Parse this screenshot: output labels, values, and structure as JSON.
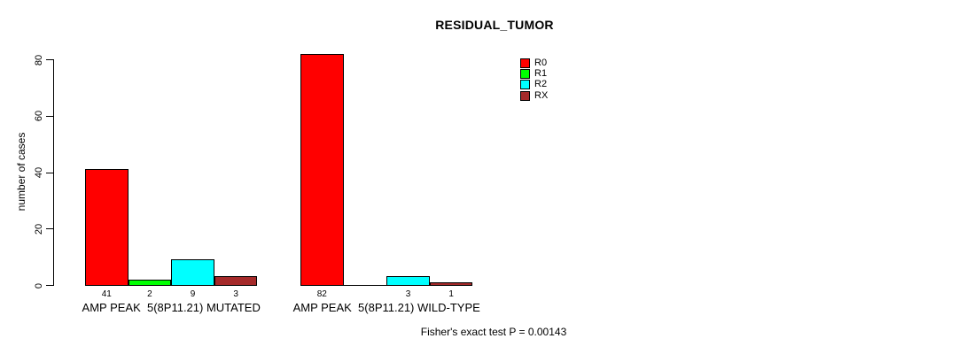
{
  "chart_data": {
    "type": "bar",
    "title": "RESIDUAL_TUMOR",
    "xlabel": "",
    "ylabel": "number of cases",
    "ylim": [
      0,
      80
    ],
    "yticks": [
      "0",
      "20",
      "40",
      "60",
      "80"
    ],
    "grid": false,
    "legend_position": "top-right",
    "categories": [
      "AMP PEAK  5(8P11.21) MUTATED",
      "AMP PEAK  5(8P11.21) WILD-TYPE"
    ],
    "series": [
      {
        "name": "R0",
        "color": "#FF0000",
        "values": [
          41,
          82
        ]
      },
      {
        "name": "R1",
        "color": "#00FF00",
        "values": [
          2,
          0
        ]
      },
      {
        "name": "R2",
        "color": "#00FFFF",
        "values": [
          9,
          3
        ]
      },
      {
        "name": "RX",
        "color": "#A52A2A",
        "values": [
          3,
          1
        ]
      }
    ],
    "bar_labels": [
      [
        "41",
        "2",
        "9",
        "3"
      ],
      [
        "82",
        "",
        "3",
        "1"
      ]
    ],
    "footnote": "Fisher's exact test P = 0.00143"
  }
}
